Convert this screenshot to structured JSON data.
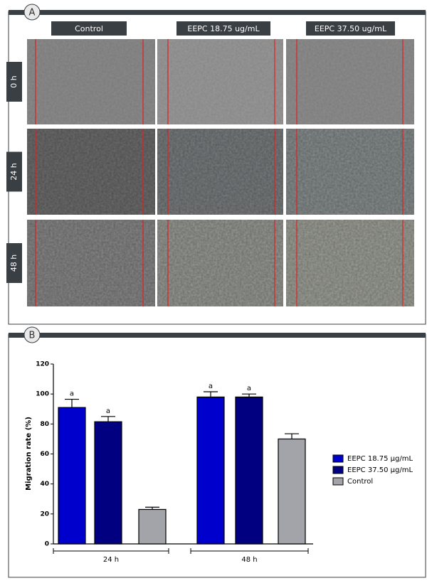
{
  "panel_a": {
    "label": "A",
    "columns": [
      "Control",
      "EEPC 18.75 ug/mL",
      "EEPC 37.50 ug/mL"
    ],
    "rows": [
      "0 h",
      "24 h",
      "48 h"
    ]
  },
  "panel_b": {
    "label": "B"
  },
  "chart_data": {
    "type": "bar",
    "ylabel": "Migration rate (%)",
    "categories": [
      "24 h",
      "48 h"
    ],
    "series": [
      {
        "name": "EEPC 18.75 µg/mL",
        "color": "#0000cc",
        "values": [
          91,
          98
        ],
        "errors": [
          5.5,
          3.5
        ],
        "significance": [
          "a",
          "a"
        ]
      },
      {
        "name": "EEPC 37.50 µg/mL",
        "color": "#000080",
        "values": [
          81.5,
          98
        ],
        "errors": [
          3.5,
          2
        ],
        "significance": [
          "a",
          "a"
        ]
      },
      {
        "name": "Control",
        "color": "#a3a3aa",
        "values": [
          23,
          70
        ],
        "errors": [
          1.5,
          3.5
        ],
        "significance": [
          null,
          null
        ]
      }
    ],
    "ylim": [
      0,
      120
    ],
    "yticks": [
      0,
      20,
      40,
      60,
      80,
      100,
      120
    ],
    "legend": "right"
  }
}
